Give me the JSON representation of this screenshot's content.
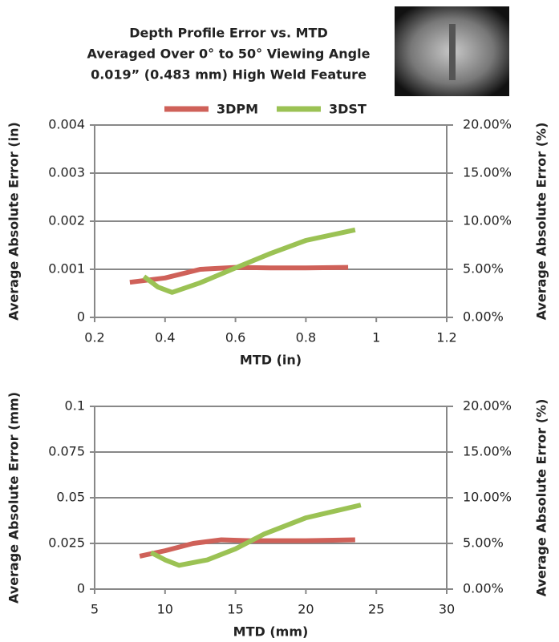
{
  "title": [
    "Depth Profile Error vs. MTD",
    "Averaged Over 0° to 50° Viewing Angle",
    "0.019” (0.483 mm) High Weld Feature"
  ],
  "chart_data": [
    {
      "type": "line",
      "x_label": "MTD (in)",
      "y_label": "Average Absolute Error (in)",
      "y2_label": "Average Absolute Error (%)",
      "xlim": [
        0.2,
        1.2
      ],
      "xticks": [
        0.2,
        0.4,
        0.6,
        0.8,
        1,
        1.2
      ],
      "ylim": [
        0,
        0.004
      ],
      "yticks": [
        0,
        0.001,
        0.002,
        0.003,
        0.004
      ],
      "y2lim": [
        0,
        20
      ],
      "y2ticks": [
        {
          "value": 0,
          "label": "0.00%"
        },
        {
          "value": 5,
          "label": "5.00%"
        },
        {
          "value": 10,
          "label": "10.00%"
        },
        {
          "value": 15,
          "label": "15.00%"
        },
        {
          "value": 20,
          "label": "20.00%"
        }
      ],
      "grid": true,
      "series": [
        {
          "name": "3DPM",
          "color": "#cf6159",
          "x": [
            0.3,
            0.4,
            0.5,
            0.6,
            0.7,
            0.8,
            0.92
          ],
          "values": [
            0.00073,
            0.00082,
            0.001,
            0.00104,
            0.00103,
            0.00103,
            0.00104
          ]
        },
        {
          "name": "3DST",
          "color": "#9bc254",
          "x": [
            0.34,
            0.38,
            0.42,
            0.5,
            0.6,
            0.7,
            0.8,
            0.94
          ],
          "values": [
            0.00085,
            0.00063,
            0.00052,
            0.00072,
            0.00103,
            0.00133,
            0.0016,
            0.00182
          ]
        }
      ]
    },
    {
      "type": "line",
      "x_label": "MTD (mm)",
      "y_label": "Average Absolute Error (mm)",
      "y2_label": "Average Absolute Error (%)",
      "xlim": [
        5,
        30
      ],
      "xticks": [
        5,
        10,
        15,
        20,
        25,
        30
      ],
      "ylim": [
        0,
        0.1
      ],
      "yticks": [
        0,
        0.025,
        0.05,
        0.075,
        0.1
      ],
      "y2lim": [
        0,
        20
      ],
      "y2ticks": [
        {
          "value": 0,
          "label": "0.00%"
        },
        {
          "value": 5,
          "label": "5.00%"
        },
        {
          "value": 10,
          "label": "10.00%"
        },
        {
          "value": 15,
          "label": "15.00%"
        },
        {
          "value": 20,
          "label": "20.00%"
        }
      ],
      "grid": true,
      "series": [
        {
          "name": "3DPM",
          "color": "#cf6159",
          "x": [
            8.2,
            10,
            12,
            14,
            16,
            20,
            23.5
          ],
          "values": [
            0.018,
            0.021,
            0.025,
            0.027,
            0.0265,
            0.0265,
            0.027
          ]
        },
        {
          "name": "3DST",
          "color": "#9bc254",
          "x": [
            9,
            10,
            11,
            13,
            15,
            17,
            20,
            23.9
          ],
          "values": [
            0.02,
            0.016,
            0.013,
            0.016,
            0.022,
            0.03,
            0.039,
            0.046
          ]
        }
      ]
    }
  ]
}
